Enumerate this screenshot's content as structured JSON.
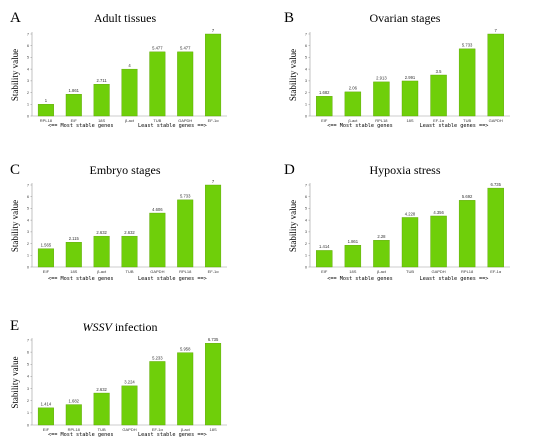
{
  "colors": {
    "bar": "#6fcf0a",
    "bar_edge": "#5aa000",
    "axis": "#9a9a9a"
  },
  "chart_data": [
    {
      "type": "bar",
      "panel": "A",
      "title": "Adult tissues",
      "ylabel": "Stability value",
      "footer_left": "<== Most stable genes",
      "footer_right": "Least stable genes ==>",
      "categories": [
        "RPL18",
        "EIF",
        "18S",
        "β-act",
        "TUB",
        "GAPDH",
        "EF-1α"
      ],
      "values": [
        1,
        1.861,
        2.711,
        4,
        5.477,
        5.477,
        7
      ],
      "value_labels": [
        "1",
        "1.861",
        "2.711",
        "4",
        "5.477",
        "5.477",
        "7"
      ],
      "yticks": [
        "0",
        "1",
        "2",
        "3",
        "4",
        "5",
        "6",
        "7"
      ],
      "ylim": [
        0,
        7
      ]
    },
    {
      "type": "bar",
      "panel": "B",
      "title": "Ovarian stages",
      "ylabel": "Stability value",
      "footer_left": "<== Most stable genes",
      "footer_right": "Least stable genes ==>",
      "categories": [
        "EIF",
        "β-act",
        "RPL18",
        "18S",
        "EF-1α",
        "TUB",
        "GAPDH"
      ],
      "values": [
        1.682,
        2.06,
        2.913,
        2.991,
        3.5,
        5.733,
        7
      ],
      "value_labels": [
        "1.682",
        "2.06",
        "2.913",
        "2.991",
        "3.5",
        "5.733",
        "7"
      ],
      "yticks": [
        "0",
        "1",
        "2",
        "3",
        "4",
        "5",
        "6",
        "7"
      ],
      "ylim": [
        0,
        7
      ]
    },
    {
      "type": "bar",
      "panel": "C",
      "title": "Embryo stages",
      "ylabel": "Stability value",
      "footer_left": "<== Most stable genes",
      "footer_right": "Least stable genes ==>",
      "categories": [
        "EIF",
        "18S",
        "β-act",
        "TUB",
        "GAPDH",
        "RPL18",
        "EF-1α"
      ],
      "values": [
        1.565,
        2.115,
        2.632,
        2.632,
        4.606,
        5.733,
        7
      ],
      "value_labels": [
        "1.565",
        "2.115",
        "2.632",
        "2.632",
        "4.606",
        "5.733",
        "7"
      ],
      "yticks": [
        "0",
        "1",
        "2",
        "3",
        "4",
        "5",
        "6",
        "7"
      ],
      "ylim": [
        0,
        7
      ]
    },
    {
      "type": "bar",
      "panel": "D",
      "title": "Hypoxia stress",
      "ylabel": "Stability value",
      "footer_left": "<== Most stable genes",
      "footer_right": "Least stable genes ==>",
      "categories": [
        "EIF",
        "18S",
        "β-act",
        "TUB",
        "GAPDH",
        "RPL18",
        "EF-1α"
      ],
      "values": [
        1.414,
        1.861,
        2.28,
        4.228,
        4.356,
        5.692,
        6.735
      ],
      "value_labels": [
        "1.414",
        "1.861",
        "2.28",
        "4.228",
        "4.356",
        "5.692",
        "6.735"
      ],
      "yticks": [
        "0",
        "1",
        "2",
        "3",
        "4",
        "5",
        "6",
        "7"
      ],
      "ylim": [
        0,
        7
      ]
    },
    {
      "type": "bar",
      "panel": "E",
      "title_italic": "WSSV",
      "title": " infection",
      "ylabel": "Stability value",
      "footer_left": "<== Most stable genes",
      "footer_right": "Least stable genes ==>",
      "categories": [
        "EIF",
        "RPL18",
        "TUB",
        "GAPDH",
        "EF-1α",
        "β-act",
        "18S"
      ],
      "values": [
        1.414,
        1.682,
        2.632,
        3.224,
        5.233,
        5.958,
        6.735
      ],
      "value_labels": [
        "1.414",
        "1.682",
        "2.632",
        "3.224",
        "5.233",
        "5.958",
        "6.735"
      ],
      "yticks": [
        "0",
        "1",
        "2",
        "3",
        "4",
        "5",
        "6",
        "7"
      ],
      "ylim": [
        0,
        7
      ]
    }
  ]
}
